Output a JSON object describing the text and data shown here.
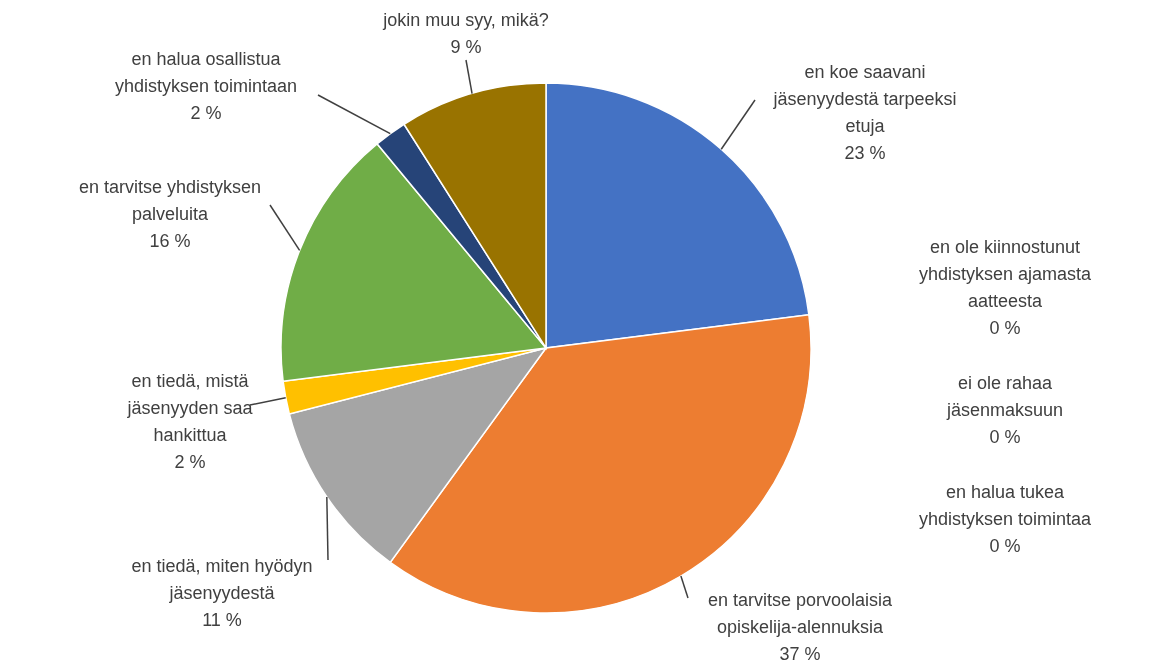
{
  "chart_data": {
    "type": "pie",
    "categories": [
      "en koe saavani jäsenyydestä tarpeeksi etuja",
      "en ole kiinnostunut yhdistyksen ajamasta aatteesta",
      "ei ole rahaa jäsenmaksuun",
      "en halua tukea yhdistyksen toimintaa",
      "en tarvitse porvoolaisia opiskelija-alennuksia",
      "en tiedä, miten hyödyn jäsenyydestä",
      "en tiedä, mistä jäsenyyden saa hankittua",
      "en tarvitse yhdistyksen palveluita",
      "en halua osallistua yhdistyksen toimintaan",
      "jokin muu syy, mikä?"
    ],
    "values": [
      23,
      0,
      0,
      0,
      37,
      11,
      2,
      16,
      2,
      9
    ],
    "value_labels": [
      "23 %",
      "0 %",
      "0 %",
      "0 %",
      "37 %",
      "11 %",
      "2 %",
      "16 %",
      "2 %",
      "9 %"
    ],
    "colors": [
      "#4472c4",
      "#5b9bd5",
      "#a9d18e",
      "#f4b183",
      "#ed7d31",
      "#a5a5a5",
      "#ffc000",
      "#70ad47",
      "#264478",
      "#997300"
    ]
  }
}
